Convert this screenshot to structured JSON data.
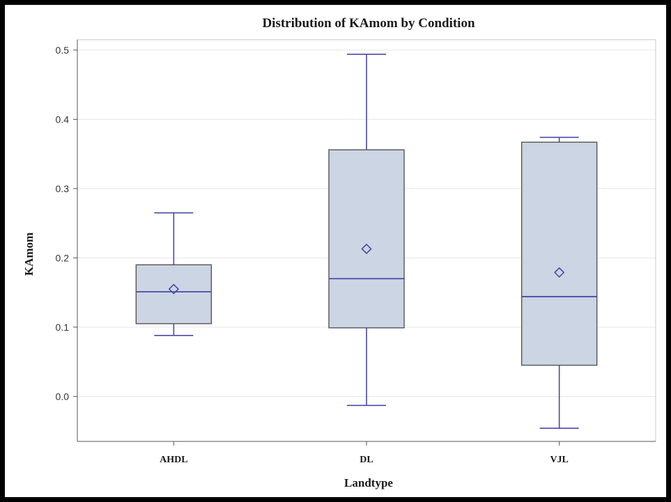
{
  "chart_data": {
    "type": "box",
    "title": "Distribution of KAmom by Condition",
    "xlabel": "Landtype",
    "ylabel": "KAmom",
    "ylim": [
      -0.065,
      0.515
    ],
    "yticks": [
      "0.0",
      "0.1",
      "0.2",
      "0.3",
      "0.4",
      "0.5"
    ],
    "grid": true,
    "categories": [
      "AHDL",
      "DL",
      "VJL"
    ],
    "boxes": [
      {
        "category": "AHDL",
        "whisker_low": 0.088,
        "q1": 0.105,
        "median": 0.151,
        "q3": 0.19,
        "whisker_high": 0.265,
        "mean": 0.155
      },
      {
        "category": "DL",
        "whisker_low": -0.013,
        "q1": 0.099,
        "median": 0.17,
        "q3": 0.356,
        "whisker_high": 0.494,
        "mean": 0.213
      },
      {
        "category": "VJL",
        "whisker_low": -0.046,
        "q1": 0.045,
        "median": 0.144,
        "q3": 0.367,
        "whisker_high": 0.374,
        "mean": 0.179
      }
    ],
    "colors": {
      "box_fill": "#cbd5e4",
      "box_stroke": "#555555",
      "line": "#4a4aa8",
      "mean_marker": "#4a4aa8"
    }
  }
}
